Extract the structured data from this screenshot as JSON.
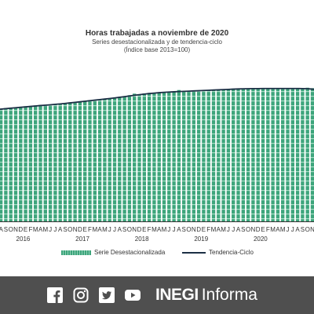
{
  "title": "Horas trabajadas a noviembre de 2020",
  "subtitle_1": "Series desestacionalizada y de tendencia-ciclo",
  "subtitle_2": "(Índice base 2013=100)",
  "chart_data": {
    "type": "bar",
    "series": [
      {
        "name": "Serie Desestacionalizada",
        "type": "bar",
        "values": [
          102.0,
          102.6,
          103.1,
          103.4,
          103.7,
          104.2,
          104.8,
          105.0,
          105.6,
          105.9,
          106.1,
          106.4,
          106.8,
          107.2,
          107.8,
          108.3,
          108.6,
          109.2,
          109.8,
          110.3,
          110.7,
          111.0,
          111.6,
          112.1,
          112.8,
          113.3,
          114.0,
          114.8,
          116.2,
          115.0,
          116.4,
          116.9,
          117.0,
          117.4,
          117.2,
          117.6,
          118.3,
          119.5,
          118.2,
          118.6,
          118.8,
          118.9,
          119.1,
          119.5,
          119.3,
          119.8,
          120.1,
          120.4,
          120.8,
          120.9,
          120.7,
          121.0,
          120.6,
          120.8,
          121.2,
          120.9,
          120.7,
          121.0,
          121.1,
          120.6,
          120.7,
          120.9,
          120.5,
          121.6,
          121.2,
          120.4,
          119.3,
          118.4,
          117.2,
          116.6,
          114.9,
          115.3
        ]
      },
      {
        "name": "Tendencia-Ciclo",
        "type": "line",
        "values": [
          101.6,
          102.1,
          102.6,
          103.0,
          103.4,
          103.8,
          104.2,
          104.6,
          105.0,
          105.4,
          105.7,
          106.1,
          106.5,
          106.9,
          107.3,
          107.8,
          108.3,
          108.8,
          109.3,
          109.8,
          110.3,
          110.8,
          111.3,
          111.8,
          112.3,
          112.9,
          113.5,
          114.1,
          114.7,
          115.3,
          115.8,
          116.3,
          116.7,
          117.1,
          117.4,
          117.7,
          117.9,
          118.1,
          118.3,
          118.5,
          118.7,
          118.9,
          119.1,
          119.3,
          119.5,
          119.7,
          119.9,
          120.1,
          120.3,
          120.5,
          120.6,
          120.7,
          120.8,
          120.8,
          120.9,
          120.9,
          120.9,
          120.9,
          120.9,
          120.9,
          120.9,
          120.9,
          120.8,
          120.7,
          120.3,
          119.8,
          119.2,
          118.5,
          117.8,
          117.1,
          116.4,
          115.8
        ]
      }
    ],
    "months": [
      "J",
      "A",
      "S",
      "O",
      "N",
      "D",
      "E",
      "F",
      "M",
      "A",
      "M",
      "J",
      "J",
      "A",
      "S",
      "O",
      "N",
      "D",
      "E",
      "F",
      "M",
      "A",
      "M",
      "J",
      "J",
      "A",
      "S",
      "O",
      "N",
      "D",
      "E",
      "F",
      "M",
      "A",
      "M",
      "J",
      "J",
      "A",
      "S",
      "O",
      "N",
      "D",
      "E",
      "F",
      "M",
      "A",
      "M",
      "J",
      "J",
      "A",
      "S",
      "O",
      "N",
      "D",
      "E",
      "F",
      "M",
      "A",
      "M",
      "J",
      "J",
      "A",
      "S",
      "O",
      "N",
      "D",
      "E",
      "F",
      "M",
      "A",
      "M",
      "J"
    ],
    "years": [
      {
        "label": "2016",
        "month_index": 5.5
      },
      {
        "label": "2017",
        "month_index": 17.5
      },
      {
        "label": "2018",
        "month_index": 29.5
      },
      {
        "label": "2019",
        "month_index": 41.5
      },
      {
        "label": "2020",
        "month_index": 53.5
      }
    ],
    "ylim": [
      0,
      130
    ],
    "grid": false,
    "legend": "bottom"
  },
  "colors": {
    "bar": "#3ea57c",
    "bar_stripe": "#a6ddc5",
    "line": "#1c2f45",
    "footer_bg": "#4f4f4f"
  },
  "footer": {
    "icons": [
      "facebook-icon",
      "instagram-icon",
      "twitter-icon",
      "youtube-icon"
    ],
    "brand_bold": "INEGI",
    "brand_regular": "Informa"
  }
}
